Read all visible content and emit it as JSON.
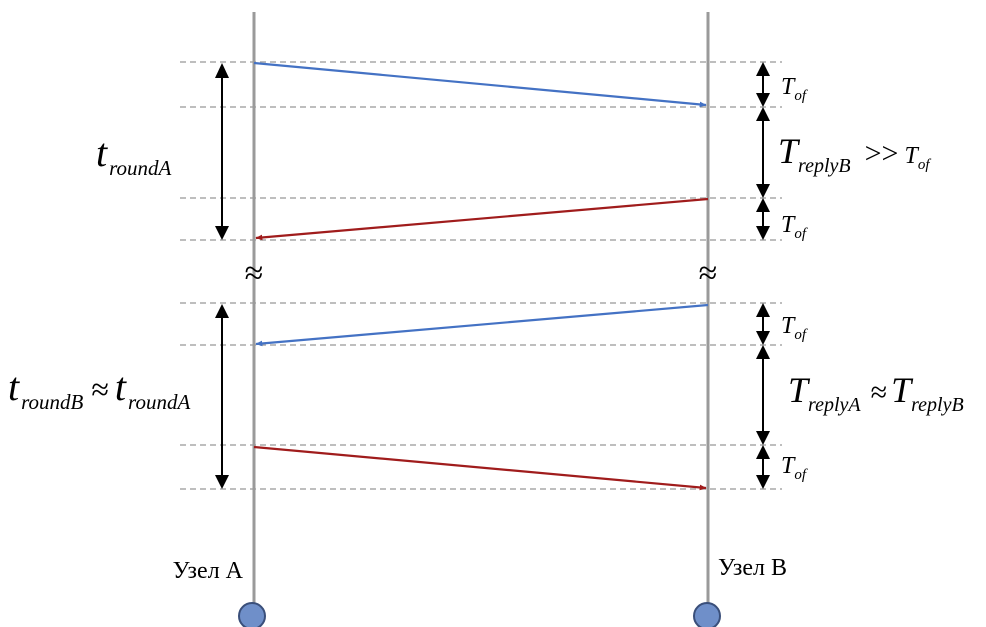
{
  "nodes": {
    "a_label": "Узел A",
    "b_label": "Узел B",
    "fill_color": "#6f8fc9",
    "stroke_color": "#3a4f7a"
  },
  "colors": {
    "forward_message": "#4472c4",
    "reply_message": "#a01c1c"
  },
  "symbols": {
    "break": "≈"
  },
  "top": {
    "round": {
      "main": "t",
      "sub": "roundA"
    },
    "tof_1": {
      "main": "T",
      "sub": "of"
    },
    "reply": {
      "main": "T",
      "sub": "replyB",
      "relation": ">>",
      "rhs_main": "T",
      "rhs_sub": "of"
    },
    "tof_2": {
      "main": "T",
      "sub": "of"
    }
  },
  "bottom": {
    "round": {
      "main": "t",
      "sub": "roundB",
      "relation": "≈",
      "rhs_main": "t",
      "rhs_sub": "roundA"
    },
    "tof_1": {
      "main": "T",
      "sub": "of"
    },
    "reply": {
      "main": "T",
      "sub": "replyA",
      "relation": "≈",
      "rhs_main": "T",
      "rhs_sub": "replyB"
    },
    "tof_2": {
      "main": "T",
      "sub": "of"
    }
  }
}
